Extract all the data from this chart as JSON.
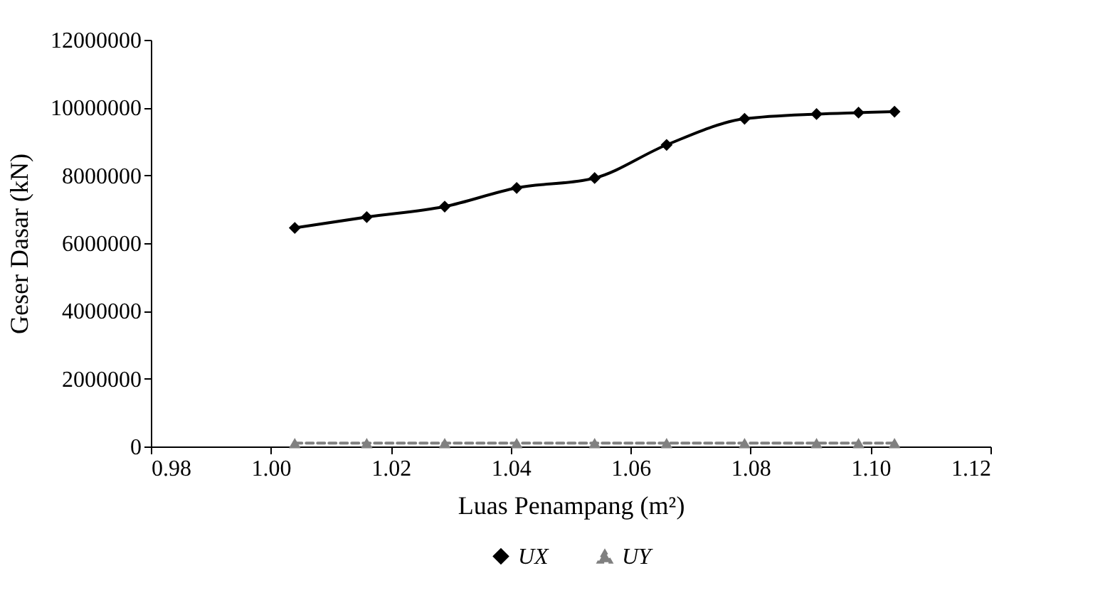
{
  "chart_data": {
    "type": "line",
    "xlabel": "Luas Penampang (m²)",
    "ylabel": "Geser Dasar (kN)",
    "x": [
      1.004,
      1.016,
      1.029,
      1.041,
      1.054,
      1.066,
      1.079,
      1.091,
      1.098,
      1.104
    ],
    "series": [
      {
        "name": "UX",
        "color": "#000000",
        "marker": "diamond",
        "line_style": "solid",
        "values": [
          6450000,
          6770000,
          7080000,
          7630000,
          7920000,
          8900000,
          9670000,
          9810000,
          9850000,
          9880000
        ]
      },
      {
        "name": "UY",
        "color": "#808080",
        "marker": "triangle",
        "line_style": "dashed",
        "values": [
          100000,
          100000,
          100000,
          100000,
          100000,
          100000,
          100000,
          100000,
          100000,
          100000
        ]
      }
    ],
    "xlim": [
      0.98,
      1.12
    ],
    "xticks": [
      {
        "value": 0.98,
        "label": "0.98"
      },
      {
        "value": 1.0,
        "label": "1.00"
      },
      {
        "value": 1.02,
        "label": "1.02"
      },
      {
        "value": 1.04,
        "label": "1.04"
      },
      {
        "value": 1.06,
        "label": "1.06"
      },
      {
        "value": 1.08,
        "label": "1.08"
      },
      {
        "value": 1.1,
        "label": "1.10"
      },
      {
        "value": 1.12,
        "label": "1.12"
      }
    ],
    "ylim": [
      0,
      12000000
    ],
    "yticks": [
      0,
      2000000,
      4000000,
      6000000,
      8000000,
      10000000,
      12000000
    ],
    "grid": false,
    "legend": "bottom"
  }
}
